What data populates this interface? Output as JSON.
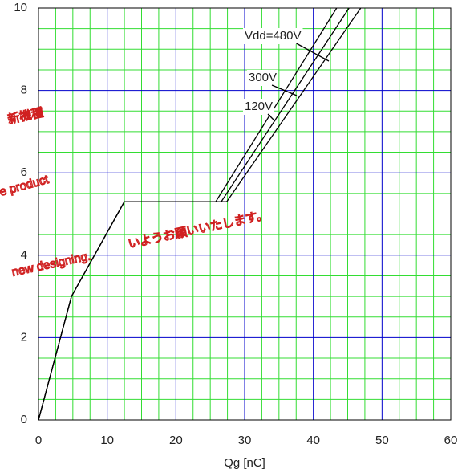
{
  "chart_data": {
    "type": "line",
    "xlabel": "Qg [nC]",
    "xlim": [
      0,
      60
    ],
    "xticks": [
      0,
      10,
      20,
      30,
      40,
      50,
      60
    ],
    "ylim": [
      0,
      10
    ],
    "yticks": [
      0,
      2,
      4,
      6,
      8,
      10
    ],
    "grid": true,
    "grid_color": "#0000cc",
    "minor_grid_color": "#33dd33",
    "minor_divisions": 4,
    "series": [
      {
        "name": "120V",
        "color": "#000000",
        "x": [
          0,
          4.8,
          12.5,
          25.8,
          43.4
        ],
        "values": [
          0,
          3,
          5.3,
          5.3,
          10
        ]
      },
      {
        "name": "300V",
        "color": "#000000",
        "x": [
          0,
          4.8,
          12.5,
          26.6,
          45.2
        ],
        "values": [
          0,
          3,
          5.3,
          5.3,
          10
        ]
      },
      {
        "name": "Vdd=480V",
        "color": "#000000",
        "x": [
          0,
          4.8,
          12.5,
          27.4,
          46.9
        ],
        "values": [
          0,
          3,
          5.3,
          5.3,
          10
        ]
      }
    ],
    "watermark": [
      "新機種",
      "e product",
      "いようお願いいたします。",
      "new designing."
    ]
  }
}
